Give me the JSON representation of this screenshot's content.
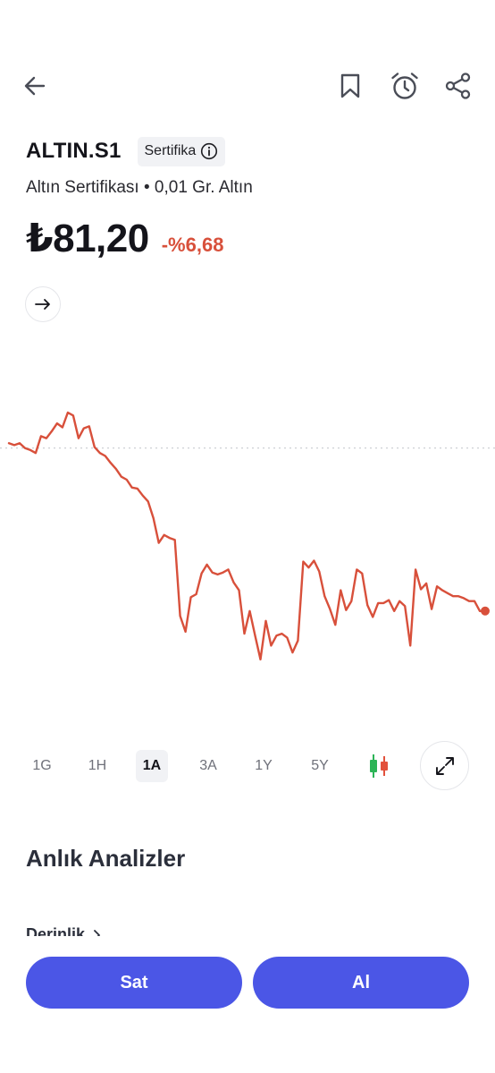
{
  "header": {
    "back_icon": "arrow-left-icon",
    "bookmark_icon": "bookmark-icon",
    "alarm_icon": "alarm-clock-icon",
    "share_icon": "share-icon"
  },
  "instrument": {
    "ticker": "ALTIN.S1",
    "badge_label": "Sertifika",
    "subtitle": "Altın Sertifikası • 0,01 Gr. Altın",
    "price": "₺81,20",
    "change": "-%6,68"
  },
  "colors": {
    "line": "#d8503b",
    "accent": "#4b56e6",
    "candle_up": "#2cb457",
    "candle_down": "#e2513c"
  },
  "chart_data": {
    "type": "line",
    "title": "",
    "series": [
      {
        "values": [
          82.9,
          82.88,
          82.9,
          82.85,
          82.83,
          82.8,
          82.97,
          82.95,
          83.02,
          83.1,
          83.06,
          83.21,
          83.18,
          82.95,
          83.05,
          83.07,
          82.86,
          82.8,
          82.77,
          82.7,
          82.64,
          82.56,
          82.53,
          82.45,
          82.44,
          82.37,
          82.31,
          82.14,
          81.89,
          81.97,
          81.94,
          81.92,
          81.15,
          80.99,
          81.34,
          81.37,
          81.58,
          81.67,
          81.59,
          81.57,
          81.59,
          81.62,
          81.49,
          81.41,
          80.97,
          81.2,
          80.95,
          80.71,
          81.1,
          80.85,
          80.95,
          80.97,
          80.93,
          80.78,
          80.9,
          81.7,
          81.64,
          81.71,
          81.6,
          81.35,
          81.22,
          81.06,
          81.41,
          81.21,
          81.3,
          81.62,
          81.58,
          81.26,
          81.14,
          81.28,
          81.28,
          81.31,
          81.2,
          81.3,
          81.25,
          80.85,
          81.62,
          81.42,
          81.48,
          81.22,
          81.45,
          81.41,
          81.38,
          81.35,
          81.35,
          81.33,
          81.3,
          81.3,
          81.2,
          81.2
        ]
      }
    ],
    "reference_line": 82.85,
    "ylim": [
      80.5,
      83.4
    ],
    "grid": false
  },
  "ranges": {
    "items": [
      "1G",
      "1H",
      "1A",
      "3A",
      "1Y",
      "5Y"
    ],
    "active": "1A",
    "candle_icon": "candlestick-icon",
    "expand_icon": "expand-icon"
  },
  "analysis": {
    "section_title": "Anlık Analizler",
    "depth_link": "Derinlik"
  },
  "actions": {
    "sell_label": "Sat",
    "buy_label": "Al"
  }
}
